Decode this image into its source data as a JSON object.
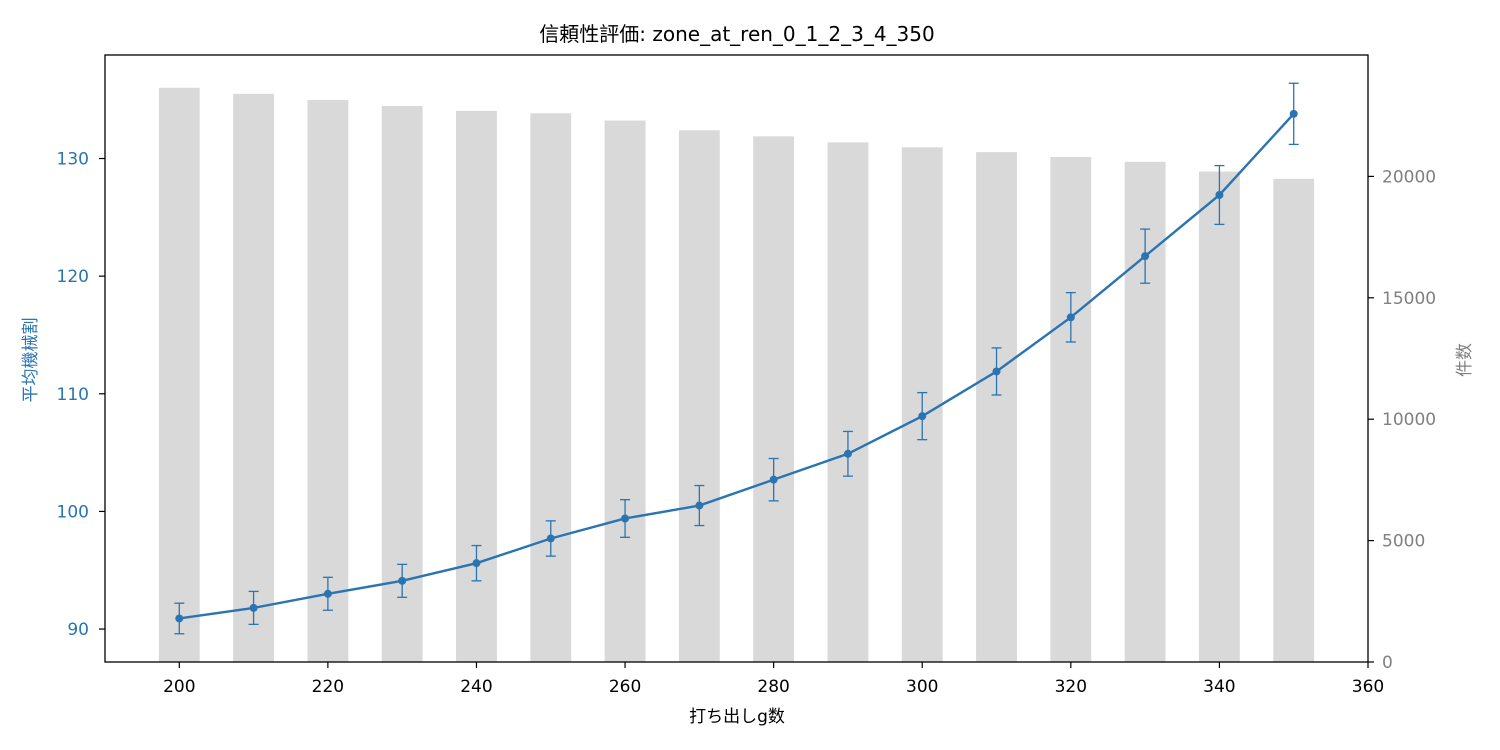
{
  "chart_data": {
    "type": "bar+line",
    "title": "信頼性評価: zone_at_ren_0_1_2_3_4_350",
    "xlabel": "打ち出しg数",
    "ylabel_left": "平均機械割",
    "ylabel_right": "件数",
    "x": [
      200,
      210,
      220,
      230,
      240,
      250,
      260,
      270,
      280,
      290,
      300,
      310,
      320,
      330,
      340,
      350
    ],
    "xlim": [
      190,
      360
    ],
    "xticks": [
      200,
      220,
      240,
      260,
      280,
      300,
      320,
      340,
      360
    ],
    "ylim_left": [
      87.2,
      138.8
    ],
    "yticks_left": [
      90,
      100,
      110,
      120,
      130
    ],
    "ylim_right": [
      0,
      25000
    ],
    "yticks_right": [
      0,
      5000,
      10000,
      15000,
      20000
    ],
    "series": [
      {
        "name": "件数",
        "kind": "bar",
        "axis": "right",
        "color": "#d9d9d9",
        "values": [
          23650,
          23400,
          23150,
          22900,
          22700,
          22600,
          22300,
          21900,
          21650,
          21400,
          21200,
          21000,
          20800,
          20600,
          20200,
          19900
        ]
      },
      {
        "name": "平均機械割",
        "kind": "line",
        "axis": "left",
        "color": "#2a74b2",
        "values": [
          90.9,
          91.8,
          93.0,
          94.1,
          95.6,
          97.7,
          99.4,
          100.5,
          102.7,
          104.9,
          108.1,
          111.9,
          116.5,
          121.7,
          126.9,
          133.8
        ],
        "err": [
          1.3,
          1.4,
          1.4,
          1.4,
          1.5,
          1.5,
          1.6,
          1.7,
          1.8,
          1.9,
          2.0,
          2.0,
          2.1,
          2.3,
          2.5,
          2.6
        ]
      }
    ],
    "grid": false,
    "colors": {
      "left_axis": "#2a74b2",
      "right_axis": "#808080",
      "bar": "#d9d9d9",
      "line": "#2a74b2"
    }
  }
}
